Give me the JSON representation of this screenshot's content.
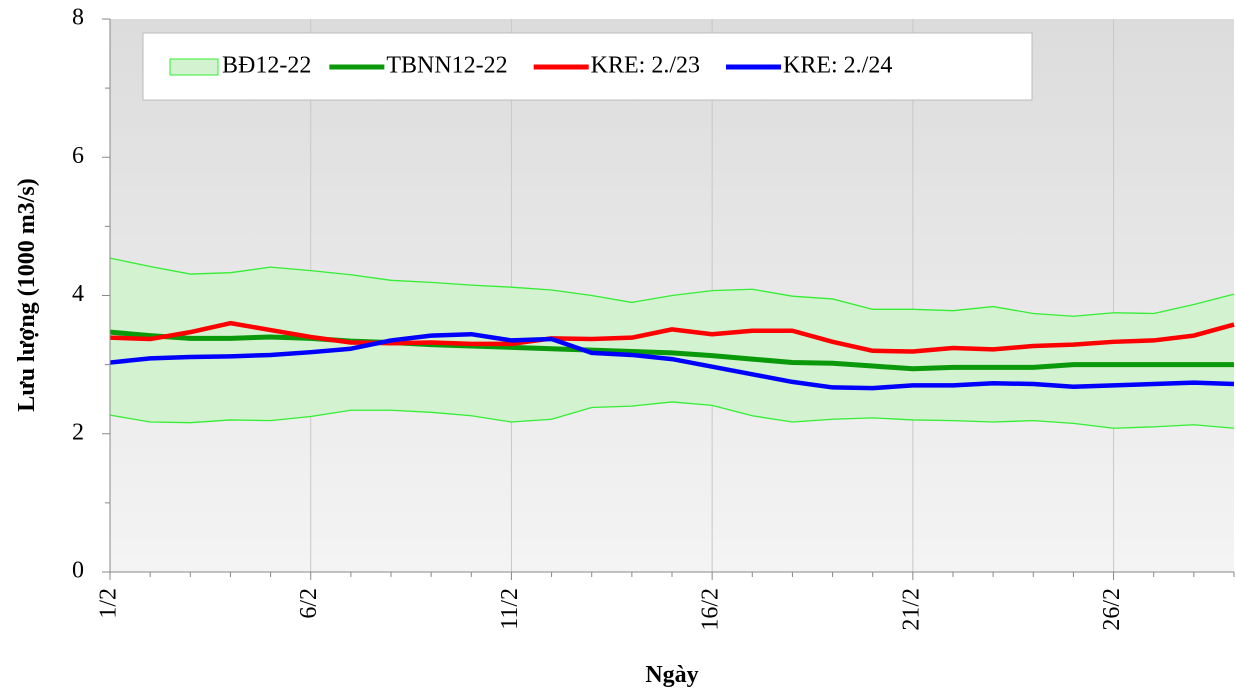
{
  "chart_data": {
    "type": "line",
    "x_label": "Ngày",
    "y_label": "Lưu lượng (1000 m3/s)",
    "categories": [
      "1/2",
      null,
      null,
      null,
      null,
      "6/2",
      null,
      null,
      null,
      null,
      "11/2",
      null,
      null,
      null,
      null,
      "16/2",
      null,
      null,
      null,
      null,
      "21/2",
      null,
      null,
      null,
      null,
      "26/2",
      null,
      null,
      null
    ],
    "ylim": [
      0,
      8
    ],
    "yticks": [
      0,
      2,
      4,
      6,
      8
    ],
    "grid": true,
    "legend": "top",
    "band": {
      "name": "BĐ12-22",
      "color": "#33ee33",
      "upper": [
        4.54,
        4.42,
        4.31,
        4.33,
        4.41,
        4.36,
        4.3,
        4.22,
        4.19,
        4.15,
        4.12,
        4.08,
        4.0,
        3.9,
        4.0,
        4.07,
        4.09,
        3.99,
        3.95,
        3.8,
        3.8,
        3.78,
        3.84,
        3.74,
        3.7,
        3.75,
        3.74,
        3.87,
        4.02
      ],
      "lower": [
        2.27,
        2.17,
        2.16,
        2.2,
        2.19,
        2.25,
        2.34,
        2.34,
        2.31,
        2.26,
        2.17,
        2.21,
        2.38,
        2.4,
        2.46,
        2.41,
        2.26,
        2.17,
        2.21,
        2.23,
        2.2,
        2.19,
        2.17,
        2.19,
        2.15,
        2.08,
        2.1,
        2.13,
        2.08
      ]
    },
    "series": [
      {
        "name": "TBNN12-22",
        "color": "#0a990a",
        "values": [
          3.47,
          3.42,
          3.38,
          3.38,
          3.4,
          3.38,
          3.34,
          3.32,
          3.29,
          3.27,
          3.25,
          3.23,
          3.21,
          3.19,
          3.17,
          3.13,
          3.08,
          3.03,
          3.02,
          2.98,
          2.94,
          2.96,
          2.96,
          2.96,
          3.0,
          3.0,
          3.0,
          3.0,
          3.0
        ]
      },
      {
        "name": "KRE: 2./23",
        "color": "#ff0000",
        "values": [
          3.39,
          3.37,
          3.47,
          3.6,
          3.5,
          3.4,
          3.32,
          3.31,
          3.32,
          3.3,
          3.3,
          3.38,
          3.37,
          3.39,
          3.51,
          3.44,
          3.49,
          3.49,
          3.33,
          3.2,
          3.19,
          3.24,
          3.22,
          3.27,
          3.29,
          3.33,
          3.35,
          3.42,
          3.58
        ]
      },
      {
        "name": "KRE: 2./24",
        "color": "#0000ff",
        "values": [
          3.03,
          3.09,
          3.11,
          3.12,
          3.14,
          3.18,
          3.23,
          3.35,
          3.42,
          3.44,
          3.35,
          3.37,
          3.17,
          3.14,
          3.08,
          2.97,
          2.86,
          2.75,
          2.67,
          2.66,
          2.7,
          2.7,
          2.73,
          2.72,
          2.68,
          2.7,
          2.72,
          2.74,
          2.72
        ]
      }
    ]
  }
}
